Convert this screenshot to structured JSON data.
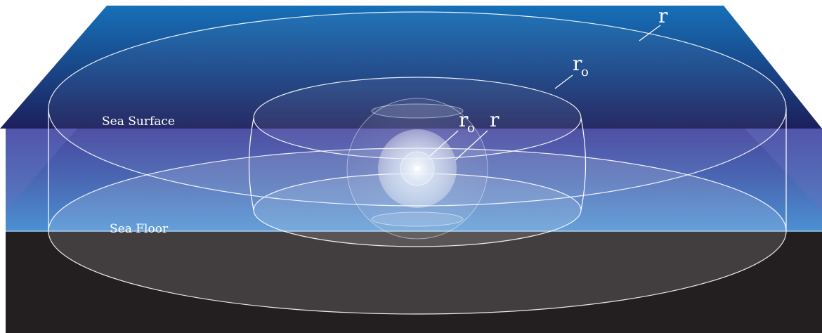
{
  "labels": {
    "sea_surface": "Sea Surface",
    "sea_floor": "Sea Floor",
    "outer_radius": "r",
    "outer_reference_radius": "r",
    "outer_reference_subscript": "o",
    "inner_reference_radius": "r",
    "inner_reference_subscript": "o",
    "inner_radius": "r"
  },
  "colors": {
    "surface_top": "#1670b8",
    "surface_bottom": "#1c1f5c",
    "water_top": "#4a4aa0",
    "water_bottom": "#4b8fd0",
    "floor": "#231f20",
    "outline": "#ffffff",
    "source_center": "#ffffff"
  }
}
